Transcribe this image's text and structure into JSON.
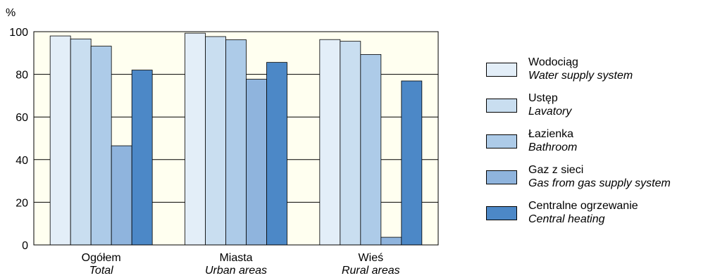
{
  "chart_data": {
    "type": "bar",
    "ylabel": "%",
    "ylim": [
      0,
      100
    ],
    "yticks": [
      "0",
      "20",
      "40",
      "60",
      "80",
      "100"
    ],
    "grid": "horizontal",
    "legend_position": "right",
    "categories": [
      {
        "label": "Ogółem",
        "sublabel": "Total"
      },
      {
        "label": "Miasta",
        "sublabel": "Urban areas"
      },
      {
        "label": "Wieś",
        "sublabel": "Rural areas"
      }
    ],
    "series": [
      {
        "name": "Wodociąg",
        "name_en": "Water supply system",
        "color": "#e3eef8",
        "values": [
          98,
          99.3,
          96.3
        ]
      },
      {
        "name": "Ustęp",
        "name_en": "Lavatory",
        "color": "#c9def0",
        "values": [
          96.6,
          97.7,
          95.5
        ]
      },
      {
        "name": "Łazienka",
        "name_en": "Bathroom",
        "color": "#adcbe8",
        "values": [
          93.2,
          96.2,
          89.3
        ]
      },
      {
        "name": "Gaz z sieci",
        "name_en": "Gas from gas supply system",
        "color": "#8fb4dd",
        "values": [
          46.5,
          77.7,
          3.6
        ]
      },
      {
        "name": "Centralne ogrzewanie",
        "name_en": "Central heating",
        "color": "#4c88c7",
        "values": [
          82,
          85.6,
          76.9
        ]
      }
    ],
    "plot_background": "#fffff0"
  }
}
